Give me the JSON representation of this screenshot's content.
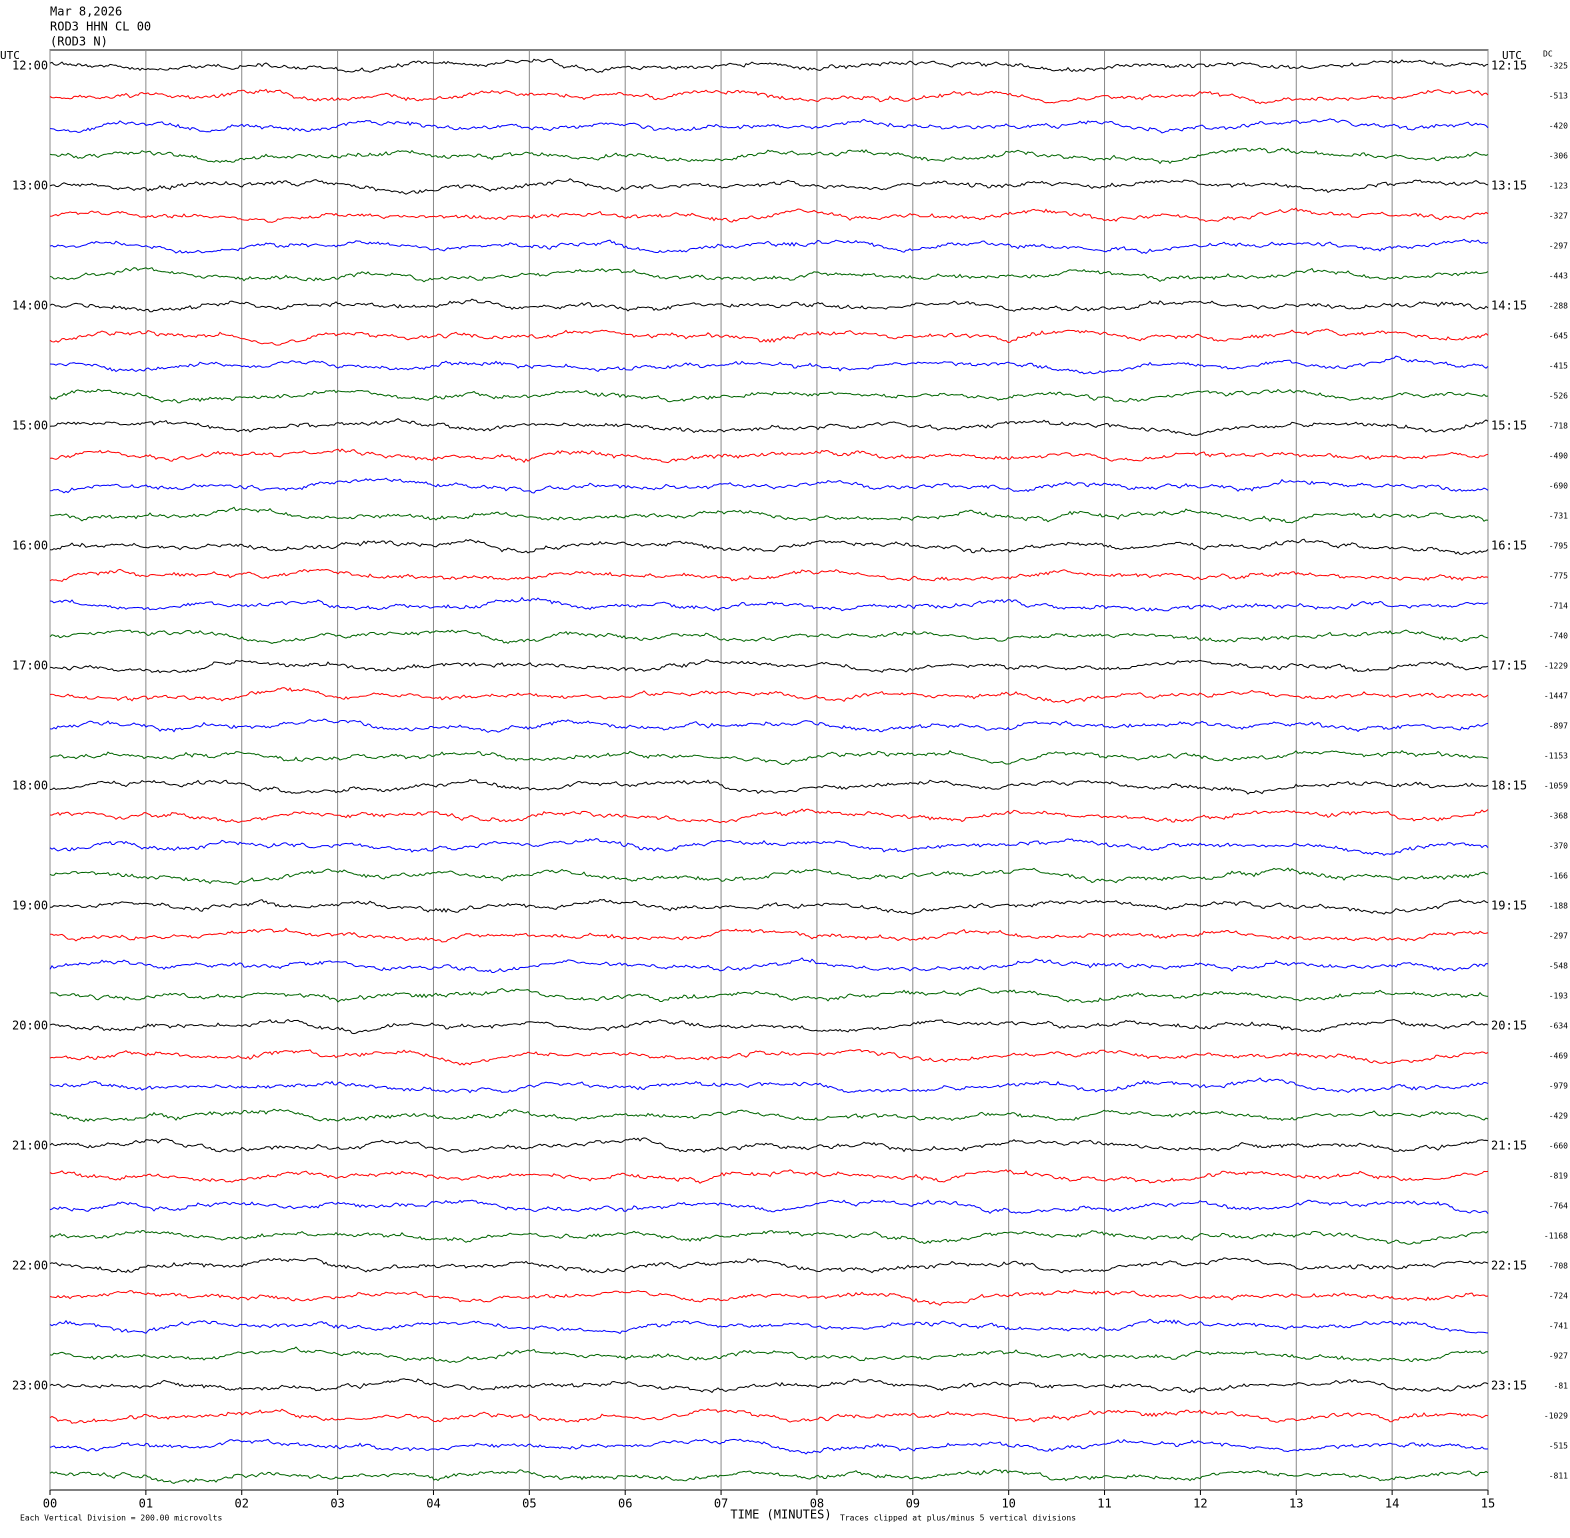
{
  "chart_data": {
    "type": "helicorder",
    "title_lines": [
      "Mar 8,2026",
      "ROD3 HHN CL 00",
      "(ROD3 N)"
    ],
    "left_axis_label": "UTC",
    "right_axis_label": "UTC",
    "dc_label": "DC",
    "hour_labels_left": [
      "12:00",
      "13:00",
      "14:00",
      "15:00",
      "16:00",
      "17:00",
      "18:00",
      "19:00",
      "20:00",
      "21:00",
      "22:00",
      "23:00"
    ],
    "hour_labels_right": [
      "12:15",
      "13:15",
      "14:15",
      "15:15",
      "16:15",
      "17:15",
      "18:15",
      "19:15",
      "20:15",
      "21:15",
      "22:15",
      "23:15"
    ],
    "dc_values": [
      -325,
      -513,
      -420,
      -306,
      -123,
      -327,
      -297,
      -443,
      -288,
      -645,
      -415,
      -526,
      -718,
      -490,
      -690,
      -731,
      -795,
      -775,
      -714,
      -740,
      -1229,
      -1447,
      -897,
      -1153,
      -1059,
      -368,
      -370,
      -166,
      -188,
      -297,
      -548,
      -193,
      -634,
      -469,
      -979,
      -429,
      -660,
      -819,
      -764,
      -1168,
      -708,
      -724,
      -741,
      -927,
      -81,
      -1029,
      -515,
      -811
    ],
    "trace_colors": [
      "#000000",
      "#ff0000",
      "#0000ff",
      "#006400"
    ],
    "xlabel": "TIME (MINUTES)",
    "xlim": [
      0,
      15
    ],
    "xticks": [
      {
        "value": 0,
        "label": "00"
      },
      {
        "value": 1,
        "label": "01"
      },
      {
        "value": 2,
        "label": "02"
      },
      {
        "value": 3,
        "label": "03"
      },
      {
        "value": 4,
        "label": "04"
      },
      {
        "value": 5,
        "label": "05"
      },
      {
        "value": 6,
        "label": "06"
      },
      {
        "value": 7,
        "label": "07"
      },
      {
        "value": 8,
        "label": "08"
      },
      {
        "value": 9,
        "label": "09"
      },
      10,
      11,
      12,
      13,
      14,
      15
    ],
    "footer_left": "Each Vertical Division =  200.00 microvolts",
    "footer_right": "Traces clipped at plus/minus 5 vertical divisions",
    "grid": true
  }
}
